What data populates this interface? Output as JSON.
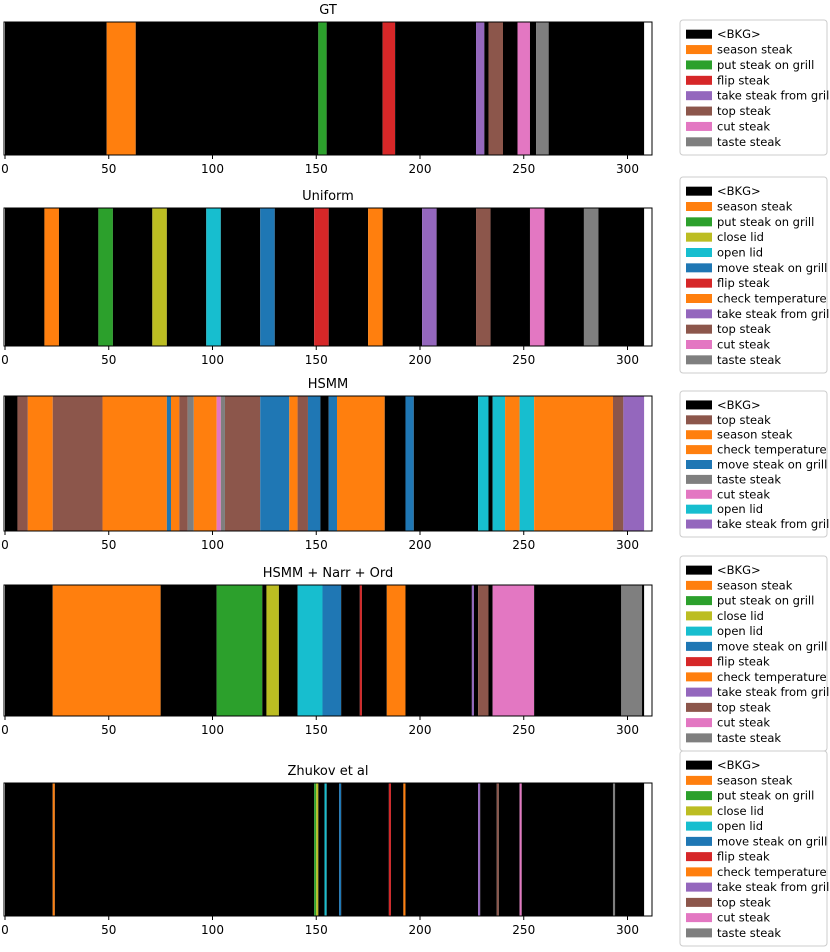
{
  "colors": {
    "BKG": "#000000",
    "season": "#ff7f0e",
    "put": "#2ca02c",
    "close": "#bcbd22",
    "open": "#17becf",
    "move": "#1f77b4",
    "flip": "#d62728",
    "check": "#ff7f0e",
    "take": "#9467bd",
    "top": "#8c564b",
    "cut": "#e377c2",
    "taste": "#7f7f7f"
  },
  "labels": {
    "BKG": "<BKG>",
    "season": "season steak",
    "put": "put steak on grill",
    "close": "close lid",
    "open": "open lid",
    "move": "move steak on grill",
    "flip": "flip steak",
    "check": "check temperature",
    "take": "take steak from grill",
    "top": "top steak",
    "cut": "cut steak",
    "taste": "taste steak"
  },
  "chart_data": [
    {
      "type": "segment-timeline",
      "title": "GT",
      "xlim": [
        0,
        308
      ],
      "xticks": [
        0,
        50,
        100,
        150,
        200,
        250,
        300
      ],
      "legend": [
        "BKG",
        "season",
        "put",
        "flip",
        "take",
        "top",
        "cut",
        "taste"
      ],
      "legend_labels": [
        "<BKG>",
        "season steak",
        "put steak on grill",
        "flip steak",
        "take steak from grill",
        "top steak",
        "cut steak",
        "taste steak"
      ],
      "segments": [
        {
          "start": 0,
          "end": 49,
          "action": "BKG"
        },
        {
          "start": 49,
          "end": 63,
          "action": "season"
        },
        {
          "start": 63,
          "end": 151,
          "action": "BKG"
        },
        {
          "start": 151,
          "end": 155,
          "action": "put"
        },
        {
          "start": 155,
          "end": 182,
          "action": "BKG"
        },
        {
          "start": 182,
          "end": 188,
          "action": "flip"
        },
        {
          "start": 188,
          "end": 227,
          "action": "BKG"
        },
        {
          "start": 227,
          "end": 231,
          "action": "take"
        },
        {
          "start": 231,
          "end": 233,
          "action": "BKG"
        },
        {
          "start": 233,
          "end": 240,
          "action": "top"
        },
        {
          "start": 240,
          "end": 247,
          "action": "BKG"
        },
        {
          "start": 247,
          "end": 253,
          "action": "cut"
        },
        {
          "start": 253,
          "end": 256,
          "action": "BKG"
        },
        {
          "start": 256,
          "end": 262,
          "action": "taste"
        },
        {
          "start": 262,
          "end": 308,
          "action": "BKG"
        }
      ]
    },
    {
      "type": "segment-timeline",
      "title": "Uniform",
      "xlim": [
        0,
        308
      ],
      "xticks": [
        0,
        50,
        100,
        150,
        200,
        250,
        300
      ],
      "legend": [
        "BKG",
        "season",
        "put",
        "close",
        "open",
        "move",
        "flip",
        "check",
        "take",
        "top",
        "cut",
        "taste"
      ],
      "legend_labels": [
        "<BKG>",
        "season steak",
        "put steak on grill",
        "close lid",
        "open lid",
        "move steak on grill",
        "flip steak",
        "check temperature",
        "take steak from grill",
        "top steak",
        "cut steak",
        "taste steak"
      ],
      "segments": [
        {
          "start": 0,
          "end": 19,
          "action": "BKG"
        },
        {
          "start": 19,
          "end": 26,
          "action": "season"
        },
        {
          "start": 26,
          "end": 45,
          "action": "BKG"
        },
        {
          "start": 45,
          "end": 52,
          "action": "put"
        },
        {
          "start": 52,
          "end": 71,
          "action": "BKG"
        },
        {
          "start": 71,
          "end": 78,
          "action": "close"
        },
        {
          "start": 78,
          "end": 97,
          "action": "BKG"
        },
        {
          "start": 97,
          "end": 104,
          "action": "open"
        },
        {
          "start": 104,
          "end": 123,
          "action": "BKG"
        },
        {
          "start": 123,
          "end": 130,
          "action": "move"
        },
        {
          "start": 130,
          "end": 149,
          "action": "BKG"
        },
        {
          "start": 149,
          "end": 156,
          "action": "flip"
        },
        {
          "start": 156,
          "end": 175,
          "action": "BKG"
        },
        {
          "start": 175,
          "end": 182,
          "action": "check"
        },
        {
          "start": 182,
          "end": 201,
          "action": "BKG"
        },
        {
          "start": 201,
          "end": 208,
          "action": "take"
        },
        {
          "start": 208,
          "end": 227,
          "action": "BKG"
        },
        {
          "start": 227,
          "end": 234,
          "action": "top"
        },
        {
          "start": 234,
          "end": 253,
          "action": "BKG"
        },
        {
          "start": 253,
          "end": 260,
          "action": "cut"
        },
        {
          "start": 260,
          "end": 279,
          "action": "BKG"
        },
        {
          "start": 279,
          "end": 286,
          "action": "taste"
        },
        {
          "start": 286,
          "end": 308,
          "action": "BKG"
        }
      ]
    },
    {
      "type": "segment-timeline",
      "title": "HSMM",
      "xlim": [
        0,
        308
      ],
      "xticks": [
        0,
        50,
        100,
        150,
        200,
        250,
        300
      ],
      "legend": [
        "BKG",
        "top",
        "season",
        "check",
        "move",
        "taste",
        "cut",
        "open",
        "take"
      ],
      "legend_labels": [
        "<BKG>",
        "top steak",
        "season steak",
        "check temperature",
        "move steak on grill",
        "taste steak",
        "cut steak",
        "open lid",
        "take steak from grill"
      ],
      "segments": [
        {
          "start": 0,
          "end": 6,
          "action": "BKG"
        },
        {
          "start": 6,
          "end": 11,
          "action": "top"
        },
        {
          "start": 11,
          "end": 23,
          "action": "season"
        },
        {
          "start": 23,
          "end": 47,
          "action": "top"
        },
        {
          "start": 47,
          "end": 78,
          "action": "season"
        },
        {
          "start": 78,
          "end": 80,
          "action": "move"
        },
        {
          "start": 80,
          "end": 84,
          "action": "check"
        },
        {
          "start": 84,
          "end": 88,
          "action": "top"
        },
        {
          "start": 88,
          "end": 91,
          "action": "taste"
        },
        {
          "start": 91,
          "end": 102,
          "action": "check"
        },
        {
          "start": 102,
          "end": 104,
          "action": "cut"
        },
        {
          "start": 104,
          "end": 106,
          "action": "taste"
        },
        {
          "start": 106,
          "end": 123,
          "action": "top"
        },
        {
          "start": 123,
          "end": 137,
          "action": "move"
        },
        {
          "start": 137,
          "end": 141,
          "action": "season"
        },
        {
          "start": 141,
          "end": 146,
          "action": "top"
        },
        {
          "start": 146,
          "end": 152,
          "action": "move"
        },
        {
          "start": 152,
          "end": 156,
          "action": "BKG"
        },
        {
          "start": 156,
          "end": 160,
          "action": "move"
        },
        {
          "start": 160,
          "end": 183,
          "action": "season"
        },
        {
          "start": 183,
          "end": 193,
          "action": "BKG"
        },
        {
          "start": 193,
          "end": 197,
          "action": "move"
        },
        {
          "start": 197,
          "end": 228,
          "action": "BKG"
        },
        {
          "start": 228,
          "end": 233,
          "action": "open"
        },
        {
          "start": 233,
          "end": 235,
          "action": "BKG"
        },
        {
          "start": 235,
          "end": 241,
          "action": "open"
        },
        {
          "start": 241,
          "end": 248,
          "action": "season"
        },
        {
          "start": 248,
          "end": 255,
          "action": "open"
        },
        {
          "start": 255,
          "end": 293,
          "action": "season"
        },
        {
          "start": 293,
          "end": 298,
          "action": "top"
        },
        {
          "start": 298,
          "end": 308,
          "action": "take"
        }
      ]
    },
    {
      "type": "segment-timeline",
      "title": "HSMM + Narr + Ord",
      "xlim": [
        0,
        308
      ],
      "xticks": [
        0,
        50,
        100,
        150,
        200,
        250,
        300
      ],
      "legend": [
        "BKG",
        "season",
        "put",
        "close",
        "open",
        "move",
        "flip",
        "check",
        "take",
        "top",
        "cut",
        "taste"
      ],
      "legend_labels": [
        "<BKG>",
        "season steak",
        "put steak on grill",
        "close lid",
        "open lid",
        "move steak on grill",
        "flip steak",
        "check temperature",
        "take steak from grill",
        "top steak",
        "cut steak",
        "taste steak"
      ],
      "segments": [
        {
          "start": 0,
          "end": 23,
          "action": "BKG"
        },
        {
          "start": 23,
          "end": 75,
          "action": "season"
        },
        {
          "start": 75,
          "end": 102,
          "action": "BKG"
        },
        {
          "start": 102,
          "end": 124,
          "action": "put"
        },
        {
          "start": 124,
          "end": 126,
          "action": "BKG"
        },
        {
          "start": 126,
          "end": 132,
          "action": "close"
        },
        {
          "start": 132,
          "end": 141,
          "action": "BKG"
        },
        {
          "start": 141,
          "end": 153,
          "action": "open"
        },
        {
          "start": 153,
          "end": 162,
          "action": "move"
        },
        {
          "start": 162,
          "end": 171,
          "action": "BKG"
        },
        {
          "start": 171,
          "end": 172,
          "action": "flip"
        },
        {
          "start": 172,
          "end": 184,
          "action": "BKG"
        },
        {
          "start": 184,
          "end": 193,
          "action": "check"
        },
        {
          "start": 193,
          "end": 225,
          "action": "BKG"
        },
        {
          "start": 225,
          "end": 226,
          "action": "take"
        },
        {
          "start": 226,
          "end": 228,
          "action": "BKG"
        },
        {
          "start": 228,
          "end": 233,
          "action": "top"
        },
        {
          "start": 233,
          "end": 235,
          "action": "BKG"
        },
        {
          "start": 235,
          "end": 255,
          "action": "cut"
        },
        {
          "start": 255,
          "end": 297,
          "action": "BKG"
        },
        {
          "start": 297,
          "end": 307,
          "action": "taste"
        },
        {
          "start": 307,
          "end": 308,
          "action": "BKG"
        }
      ]
    },
    {
      "type": "segment-timeline",
      "title": "Zhukov et al",
      "xlim": [
        0,
        308
      ],
      "xticks": [
        0,
        50,
        100,
        150,
        200,
        250,
        300
      ],
      "legend": [
        "BKG",
        "season",
        "put",
        "close",
        "open",
        "move",
        "flip",
        "check",
        "take",
        "top",
        "cut",
        "taste"
      ],
      "legend_labels": [
        "<BKG>",
        "season steak",
        "put steak on grill",
        "close lid",
        "open lid",
        "move steak on grill",
        "flip steak",
        "check temperature",
        "take steak from grill",
        "top steak",
        "cut steak",
        "taste steak"
      ],
      "segments": [
        {
          "start": 0,
          "end": 23,
          "action": "BKG"
        },
        {
          "start": 23,
          "end": 24,
          "action": "season"
        },
        {
          "start": 24,
          "end": 149,
          "action": "BKG"
        },
        {
          "start": 149,
          "end": 150,
          "action": "put"
        },
        {
          "start": 150,
          "end": 151,
          "action": "close"
        },
        {
          "start": 151,
          "end": 154,
          "action": "BKG"
        },
        {
          "start": 154,
          "end": 155,
          "action": "open"
        },
        {
          "start": 155,
          "end": 161,
          "action": "BKG"
        },
        {
          "start": 161,
          "end": 162,
          "action": "move"
        },
        {
          "start": 162,
          "end": 185,
          "action": "BKG"
        },
        {
          "start": 185,
          "end": 186,
          "action": "flip"
        },
        {
          "start": 186,
          "end": 192,
          "action": "BKG"
        },
        {
          "start": 192,
          "end": 193,
          "action": "check"
        },
        {
          "start": 193,
          "end": 228,
          "action": "BKG"
        },
        {
          "start": 228,
          "end": 229,
          "action": "take"
        },
        {
          "start": 229,
          "end": 237,
          "action": "BKG"
        },
        {
          "start": 237,
          "end": 238,
          "action": "top"
        },
        {
          "start": 238,
          "end": 248,
          "action": "BKG"
        },
        {
          "start": 248,
          "end": 249,
          "action": "cut"
        },
        {
          "start": 249,
          "end": 293,
          "action": "BKG"
        },
        {
          "start": 293,
          "end": 294,
          "action": "taste"
        },
        {
          "start": 294,
          "end": 308,
          "action": "BKG"
        }
      ]
    }
  ]
}
